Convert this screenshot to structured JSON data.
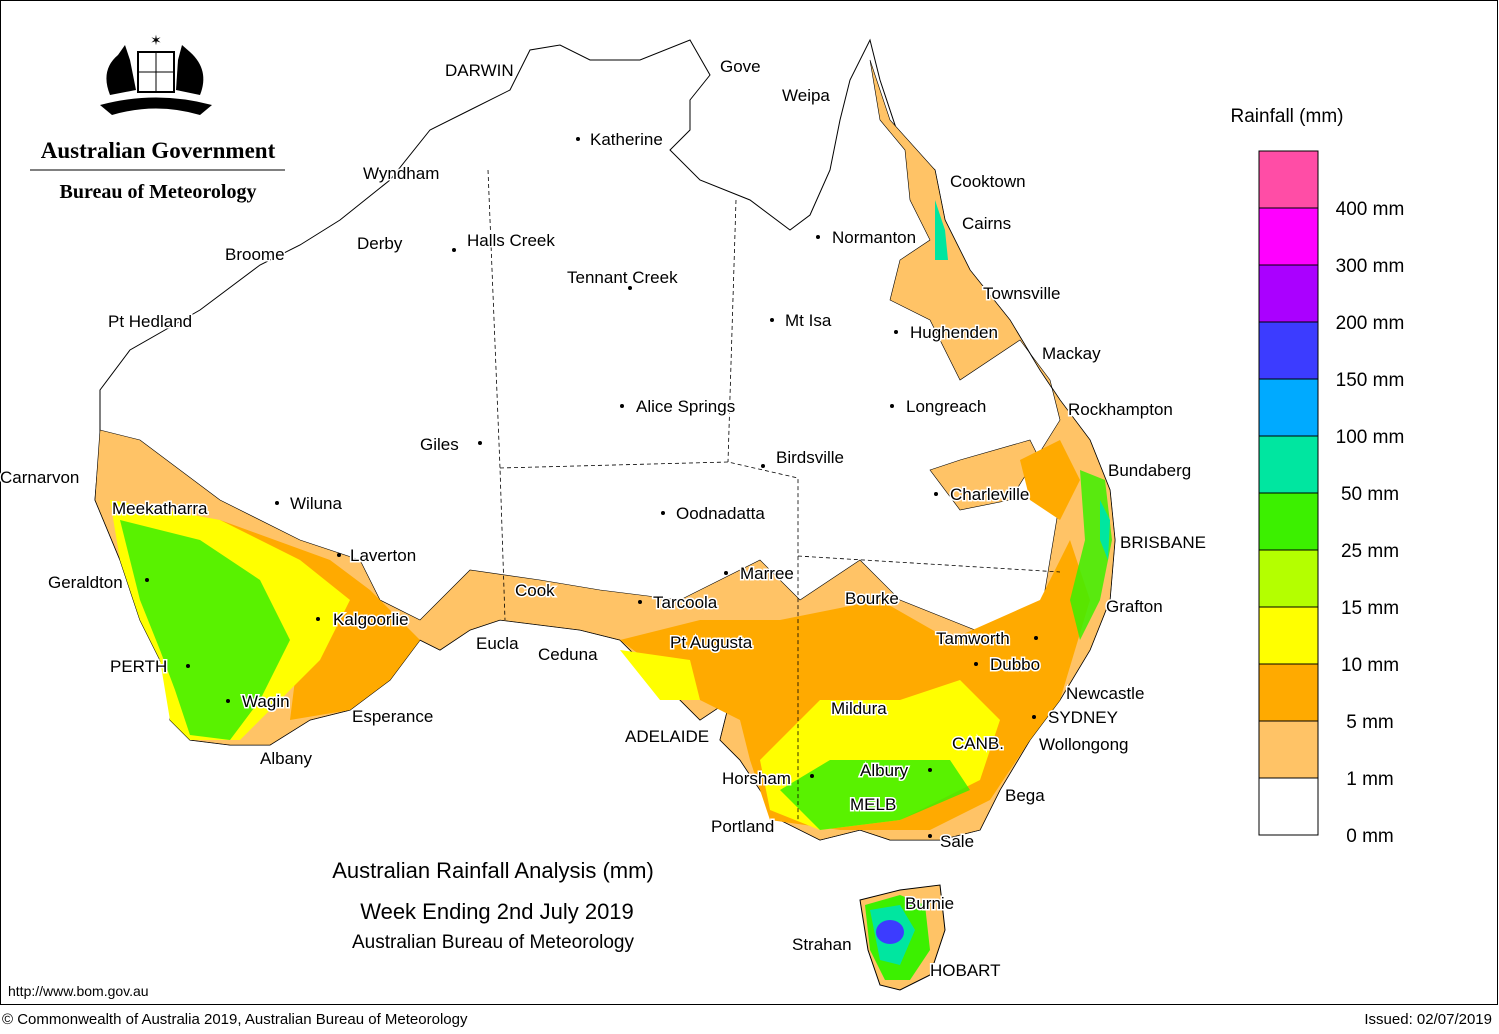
{
  "header": {
    "agency": "Australian Government",
    "bureau": "Bureau of Meteorology"
  },
  "map": {
    "title": "Australian Rainfall Analysis (mm)",
    "subtitle": "Week Ending 2nd July 2019",
    "source": "Australian Bureau of Meteorology",
    "places": [
      "DARWIN",
      "Gove",
      "Weipa",
      "Katherine",
      "Wyndham",
      "Cooktown",
      "Cairns",
      "Normanton",
      "Derby",
      "Halls Creek",
      "Broome",
      "Tennant Creek",
      "Townsville",
      "Pt Hedland",
      "Mt Isa",
      "Hughenden",
      "Mackay",
      "Alice Springs",
      "Longreach",
      "Rockhampton",
      "Giles",
      "Birdsville",
      "Bundaberg",
      "Carnarvon",
      "Charleville",
      "Meekatharra",
      "Wiluna",
      "Oodnadatta",
      "BRISBANE",
      "Laverton",
      "Marree",
      "Geraldton",
      "Cook",
      "Bourke",
      "Tarcoola",
      "Grafton",
      "Kalgoorlie",
      "Tamworth",
      "Pt Augusta",
      "Eucla",
      "Ceduna",
      "Dubbo",
      "PERTH",
      "Newcastle",
      "Wagin",
      "Mildura",
      "Esperance",
      "SYDNEY",
      "ADELAIDE",
      "CANB.",
      "Wollongong",
      "Albany",
      "Albury",
      "Horsham",
      "Bega",
      "MELB",
      "Portland",
      "Sale",
      "Burnie",
      "Strahan",
      "HOBART"
    ]
  },
  "legend": {
    "title": "Rainfall (mm)",
    "items": [
      {
        "label": "400 mm",
        "color": "#ff4da6"
      },
      {
        "label": "300 mm",
        "color": "#ff00ff"
      },
      {
        "label": "200 mm",
        "color": "#aa00ff"
      },
      {
        "label": "150 mm",
        "color": "#3c3cff"
      },
      {
        "label": "100 mm",
        "color": "#00aaff"
      },
      {
        "label": "50 mm",
        "color": "#00e6a0"
      },
      {
        "label": "25 mm",
        "color": "#3cf000"
      },
      {
        "label": "15 mm",
        "color": "#b4ff00"
      },
      {
        "label": "10 mm",
        "color": "#ffff00"
      },
      {
        "label": "5 mm",
        "color": "#ffaa00"
      },
      {
        "label": "1 mm",
        "color": "#ffc366"
      },
      {
        "label": "0 mm",
        "color": "#ffffff"
      }
    ]
  },
  "footer": {
    "url": "http://www.bom.gov.au",
    "copyright": "© Commonwealth of Australia 2019, Australian Bureau of Meteorology",
    "issued": "Issued: 02/07/2019"
  }
}
